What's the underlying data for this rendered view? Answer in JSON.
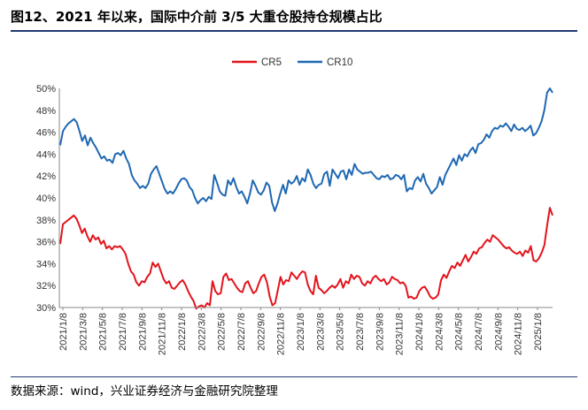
{
  "title": "图12、2021 年以来，国际中介前 3/5 大重仓股持仓规模占比",
  "source": "数据来源：wind，兴业证券经济与金融研究院整理",
  "chart_data": {
    "type": "line",
    "x_tick_labels": [
      "2021/1/8",
      "2021/3/8",
      "2021/5/8",
      "2021/7/8",
      "2021/9/8",
      "2021/11/8",
      "2022/1/8",
      "2022/3/8",
      "2022/5/8",
      "2022/7/8",
      "2022/9/8",
      "2022/11/8",
      "2023/1/8",
      "2023/3/8",
      "2023/5/8",
      "2023/7/8",
      "2023/9/8",
      "2023/11/8",
      "2024/1/8",
      "2024/3/8",
      "2024/5/8",
      "2024/7/8",
      "2024/9/8",
      "2024/11/8",
      "2025/1/8"
    ],
    "y_tick_labels": [
      "30%",
      "32%",
      "34%",
      "36%",
      "38%",
      "40%",
      "42%",
      "44%",
      "46%",
      "48%",
      "50%"
    ],
    "ylim": [
      30,
      50
    ],
    "legend_position": "top-center",
    "series": [
      {
        "name": "CR5",
        "color": "#e3141c",
        "values": [
          35.8,
          37.6,
          37.8,
          38.0,
          38.2,
          38.4,
          38.1,
          37.5,
          36.8,
          37.2,
          36.5,
          36.0,
          36.6,
          36.2,
          36.4,
          35.8,
          36.1,
          35.4,
          35.6,
          35.3,
          35.6,
          35.5,
          35.6,
          35.3,
          34.9,
          34.0,
          33.3,
          33.0,
          32.3,
          32.0,
          32.4,
          32.3,
          32.8,
          33.1,
          34.1,
          33.7,
          34.0,
          33.3,
          32.6,
          32.2,
          32.4,
          31.8,
          31.7,
          32.0,
          32.3,
          32.5,
          32.1,
          31.5,
          31.0,
          30.6,
          29.9,
          30.1,
          30.2,
          30.0,
          30.4,
          30.2,
          32.4,
          31.5,
          31.2,
          31.3,
          32.8,
          33.1,
          32.5,
          32.6,
          32.2,
          31.8,
          31.5,
          31.4,
          32.2,
          32.4,
          31.8,
          31.3,
          31.5,
          32.2,
          32.8,
          33.0,
          32.3,
          31.0,
          30.2,
          30.4,
          31.6,
          32.8,
          32.1,
          32.5,
          32.4,
          33.2,
          32.9,
          32.6,
          33.0,
          33.3,
          33.2,
          32.1,
          31.5,
          31.2,
          32.9,
          31.8,
          31.6,
          31.3,
          31.5,
          31.8,
          32.0,
          31.8,
          32.1,
          32.6,
          31.8,
          32.4,
          32.2,
          33.0,
          32.6,
          32.9,
          32.8,
          32.2,
          32.0,
          32.4,
          32.2,
          32.7,
          32.9,
          32.6,
          32.4,
          32.6,
          32.1,
          32.3,
          32.8,
          32.6,
          32.5,
          32.2,
          32.3,
          32.0,
          30.9,
          31.0,
          30.8,
          30.9,
          31.5,
          31.8,
          31.9,
          31.5,
          31.0,
          30.8,
          30.9,
          31.2,
          32.5,
          33.0,
          32.7,
          33.3,
          33.8,
          33.6,
          34.1,
          33.8,
          34.3,
          34.8,
          34.2,
          34.6,
          35.1,
          34.9,
          35.4,
          35.5,
          35.9,
          36.2,
          36.0,
          36.6,
          36.4,
          36.2,
          35.9,
          35.6,
          35.4,
          35.5,
          35.2,
          35.0,
          34.9,
          35.1,
          34.7,
          35.2,
          35.0,
          35.6,
          34.3,
          34.2,
          34.5,
          35.0,
          35.7,
          37.5,
          39.1,
          38.4
        ]
      },
      {
        "name": "CR10",
        "color": "#1f68b2",
        "values": [
          44.8,
          46.1,
          46.5,
          46.8,
          47.0,
          47.2,
          46.9,
          46.1,
          45.2,
          45.7,
          44.8,
          45.5,
          45.0,
          44.6,
          44.1,
          43.6,
          43.8,
          43.4,
          43.5,
          43.2,
          44.0,
          44.1,
          43.9,
          44.3,
          43.6,
          43.1,
          42.1,
          41.6,
          41.3,
          40.9,
          41.1,
          40.9,
          41.3,
          42.2,
          42.6,
          42.9,
          42.2,
          41.5,
          40.8,
          40.4,
          40.6,
          40.4,
          40.8,
          41.3,
          41.7,
          41.8,
          41.6,
          41.0,
          40.7,
          40.0,
          39.5,
          39.8,
          40.0,
          39.7,
          40.1,
          39.9,
          42.1,
          41.4,
          40.6,
          40.3,
          40.2,
          41.6,
          41.2,
          41.8,
          41.0,
          40.4,
          40.6,
          40.1,
          39.5,
          40.4,
          41.6,
          41.1,
          40.5,
          40.3,
          40.7,
          41.4,
          41.1,
          39.6,
          38.8,
          39.5,
          40.4,
          41.2,
          40.4,
          41.6,
          41.3,
          41.5,
          42.0,
          41.2,
          41.8,
          41.5,
          42.6,
          42.1,
          41.3,
          40.9,
          41.2,
          41.3,
          42.2,
          42.4,
          41.1,
          42.6,
          42.2,
          41.8,
          42.4,
          42.5,
          41.7,
          42.6,
          42.1,
          43.1,
          42.6,
          42.4,
          42.2,
          42.3,
          42.3,
          42.4,
          42.1,
          41.8,
          41.7,
          42.0,
          41.9,
          42.1,
          41.7,
          41.8,
          42.1,
          42.0,
          41.7,
          42.1,
          40.6,
          40.9,
          40.8,
          41.6,
          41.9,
          41.5,
          42.2,
          41.3,
          40.9,
          40.4,
          40.7,
          41.0,
          41.9,
          41.2,
          42.1,
          42.6,
          43.1,
          43.6,
          43.0,
          43.9,
          43.4,
          44.0,
          43.8,
          44.3,
          44.6,
          44.1,
          44.9,
          45.0,
          45.3,
          45.8,
          45.5,
          46.1,
          46.4,
          46.3,
          46.6,
          46.5,
          46.8,
          46.5,
          46.1,
          46.7,
          46.3,
          46.2,
          46.4,
          46.1,
          46.3,
          46.6,
          45.7,
          45.9,
          46.4,
          47.0,
          48.0,
          49.6,
          50.0,
          49.6
        ]
      }
    ]
  }
}
